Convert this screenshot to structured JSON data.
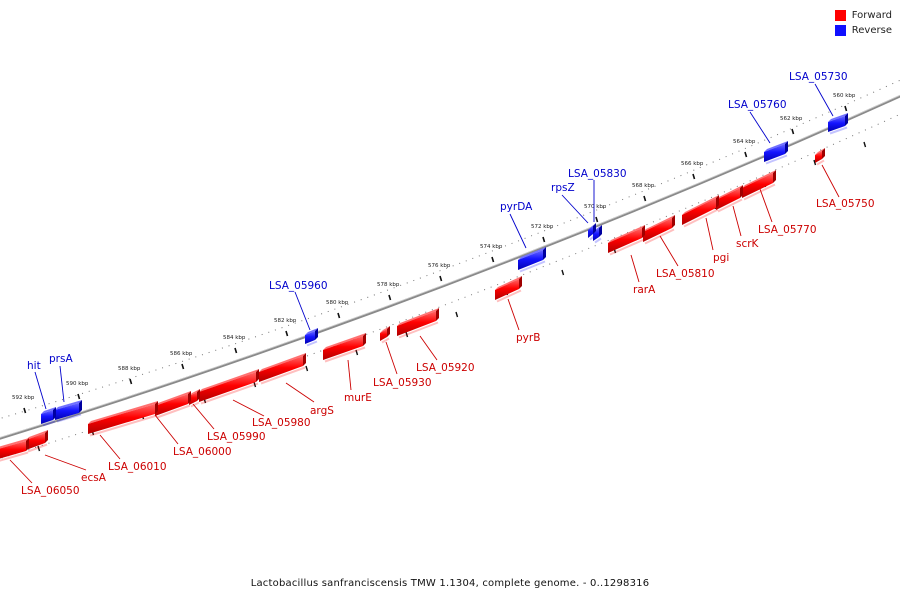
{
  "legend": {
    "forward": {
      "label": "Forward",
      "color": "#ff0000"
    },
    "reverse": {
      "label": "Reverse",
      "color": "#1010ff"
    }
  },
  "caption": "Lactobacillus sanfranciscensis TMW 1.1304, complete genome. - 0..1298316",
  "scale_ticks": [
    "560 kbp",
    "562 kbp",
    "564 kbp",
    "566 kbp",
    "568 kbp",
    "570 kbp",
    "572 kbp",
    "574 kbp",
    "576 kbp",
    "578 kbp",
    "580 kbp",
    "582 kbp",
    "584 kbp",
    "586 kbp",
    "588 kbp",
    "590 kbp",
    "592 kbp"
  ],
  "genes": [
    {
      "name": "LSA_05730",
      "strand": "reverse"
    },
    {
      "name": "LSA_05750",
      "strand": "forward"
    },
    {
      "name": "LSA_05760",
      "strand": "reverse"
    },
    {
      "name": "LSA_05770",
      "strand": "forward"
    },
    {
      "name": "scrK",
      "strand": "forward"
    },
    {
      "name": "pgi",
      "strand": "forward"
    },
    {
      "name": "LSA_05810",
      "strand": "forward"
    },
    {
      "name": "LSA_05830",
      "strand": "reverse"
    },
    {
      "name": "rpsZ",
      "strand": "reverse"
    },
    {
      "name": "rarA",
      "strand": "forward"
    },
    {
      "name": "pyrDA",
      "strand": "reverse"
    },
    {
      "name": "pyrB",
      "strand": "forward"
    },
    {
      "name": "LSA_05920",
      "strand": "forward"
    },
    {
      "name": "LSA_05930",
      "strand": "forward"
    },
    {
      "name": "LSA_05960",
      "strand": "reverse"
    },
    {
      "name": "murE",
      "strand": "forward"
    },
    {
      "name": "argS",
      "strand": "forward"
    },
    {
      "name": "LSA_05980",
      "strand": "forward"
    },
    {
      "name": "LSA_05990",
      "strand": "forward"
    },
    {
      "name": "LSA_06000",
      "strand": "forward"
    },
    {
      "name": "LSA_06010",
      "strand": "forward"
    },
    {
      "name": "prsA",
      "strand": "reverse"
    },
    {
      "name": "hit",
      "strand": "reverse"
    },
    {
      "name": "ecsA",
      "strand": "forward"
    },
    {
      "name": "LSA_06050",
      "strand": "forward"
    }
  ]
}
